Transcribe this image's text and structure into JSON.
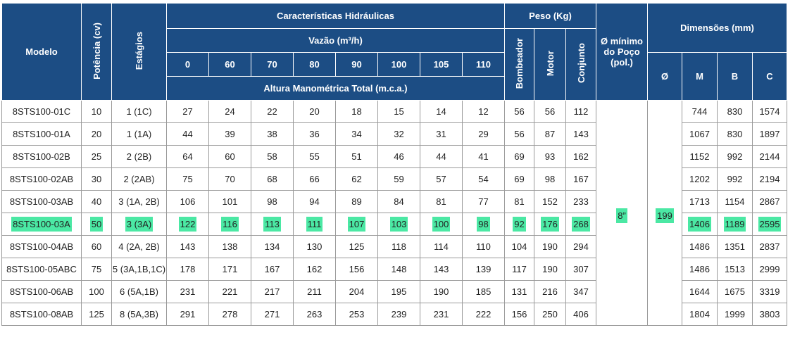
{
  "header": {
    "modelo": "Modelo",
    "potencia": "Potência (cv)",
    "estagios": "Estágios",
    "caracteristicas": "Características Hidráulicas",
    "vazao": "Vazão (m³/h)",
    "flow_columns": [
      "0",
      "60",
      "70",
      "80",
      "90",
      "100",
      "105",
      "110"
    ],
    "altura": "Altura Manométrica Total (m.c.a.)",
    "peso": "Peso (Kg)",
    "bombeador": "Bombeador",
    "motor": "Motor",
    "conjunto": "Conjunto",
    "poco_line1": "Ø mínimo",
    "poco_line2": "do Poço",
    "poco_line3": "(pol.)",
    "dimensoes": "Dimensões (mm)",
    "dim_phi": "Ø",
    "dim_m": "M",
    "dim_b": "B",
    "dim_c": "C"
  },
  "merged": {
    "poco": "8”",
    "phi": "199"
  },
  "highlight_color": "#4be8a4",
  "header_color": "#1c4d84",
  "rows": [
    {
      "modelo": "8STS100-01C",
      "potencia": "10",
      "estagios": "1 (1C)",
      "flows": [
        "27",
        "24",
        "22",
        "20",
        "18",
        "15",
        "14",
        "12"
      ],
      "bombeador": "56",
      "motor": "56",
      "conjunto": "112",
      "m": "744",
      "b": "830",
      "c": "1574",
      "highlight": false
    },
    {
      "modelo": "8STS100-01A",
      "potencia": "20",
      "estagios": "1 (1A)",
      "flows": [
        "44",
        "39",
        "38",
        "36",
        "34",
        "32",
        "31",
        "29"
      ],
      "bombeador": "56",
      "motor": "87",
      "conjunto": "143",
      "m": "1067",
      "b": "830",
      "c": "1897",
      "highlight": false
    },
    {
      "modelo": "8STS100-02B",
      "potencia": "25",
      "estagios": "2 (2B)",
      "flows": [
        "64",
        "60",
        "58",
        "55",
        "51",
        "46",
        "44",
        "41"
      ],
      "bombeador": "69",
      "motor": "93",
      "conjunto": "162",
      "m": "1152",
      "b": "992",
      "c": "2144",
      "highlight": false
    },
    {
      "modelo": "8STS100-02AB",
      "potencia": "30",
      "estagios": "2 (2AB)",
      "flows": [
        "75",
        "70",
        "68",
        "66",
        "62",
        "59",
        "57",
        "54"
      ],
      "bombeador": "69",
      "motor": "98",
      "conjunto": "167",
      "m": "1202",
      "b": "992",
      "c": "2194",
      "highlight": false
    },
    {
      "modelo": "8STS100-03AB",
      "potencia": "40",
      "estagios": "3 (1A, 2B)",
      "flows": [
        "106",
        "101",
        "98",
        "94",
        "89",
        "84",
        "81",
        "77"
      ],
      "bombeador": "81",
      "motor": "152",
      "conjunto": "233",
      "m": "1713",
      "b": "1154",
      "c": "2867",
      "highlight": false
    },
    {
      "modelo": "8STS100-03A",
      "potencia": "50",
      "estagios": "3 (3A)",
      "flows": [
        "122",
        "116",
        "113",
        "111",
        "107",
        "103",
        "100",
        "98"
      ],
      "bombeador": "92",
      "motor": "176",
      "conjunto": "268",
      "m": "1406",
      "b": "1189",
      "c": "2595",
      "highlight": true
    },
    {
      "modelo": "8STS100-04AB",
      "potencia": "60",
      "estagios": "4 (2A, 2B)",
      "flows": [
        "143",
        "138",
        "134",
        "130",
        "125",
        "118",
        "114",
        "110"
      ],
      "bombeador": "104",
      "motor": "190",
      "conjunto": "294",
      "m": "1486",
      "b": "1351",
      "c": "2837",
      "highlight": false
    },
    {
      "modelo": "8STS100-05ABC",
      "potencia": "75",
      "estagios": "5 (3A,1B,1C)",
      "flows": [
        "178",
        "171",
        "167",
        "162",
        "156",
        "148",
        "143",
        "139"
      ],
      "bombeador": "117",
      "motor": "190",
      "conjunto": "307",
      "m": "1486",
      "b": "1513",
      "c": "2999",
      "highlight": false
    },
    {
      "modelo": "8STS100-06AB",
      "potencia": "100",
      "estagios": "6 (5A,1B)",
      "flows": [
        "231",
        "221",
        "217",
        "211",
        "204",
        "195",
        "190",
        "185"
      ],
      "bombeador": "131",
      "motor": "216",
      "conjunto": "347",
      "m": "1644",
      "b": "1675",
      "c": "3319",
      "highlight": false
    },
    {
      "modelo": "8STS100-08AB",
      "potencia": "125",
      "estagios": "8 (5A,3B)",
      "flows": [
        "291",
        "278",
        "271",
        "263",
        "253",
        "239",
        "231",
        "222"
      ],
      "bombeador": "156",
      "motor": "250",
      "conjunto": "406",
      "m": "1804",
      "b": "1999",
      "c": "3803",
      "highlight": false
    }
  ]
}
